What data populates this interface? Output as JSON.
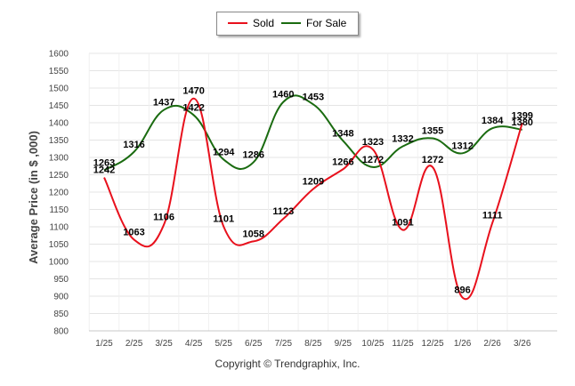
{
  "chart_data": {
    "type": "line",
    "title": "",
    "xlabel": "",
    "ylabel": "Average Price (in $ ,000)",
    "categories": [
      "1/25",
      "2/25",
      "3/25",
      "4/25",
      "5/25",
      "6/25",
      "7/25",
      "8/25",
      "9/25",
      "10/25",
      "11/25",
      "12/25",
      "1/26",
      "2/26",
      "3/26"
    ],
    "ylim": [
      800,
      1600
    ],
    "yticks": [
      800,
      850,
      900,
      950,
      1000,
      1050,
      1100,
      1150,
      1200,
      1250,
      1300,
      1350,
      1400,
      1450,
      1500,
      1550,
      1600
    ],
    "grid": true,
    "legend_position": "top-center",
    "series": [
      {
        "name": "Sold",
        "color": "#e8101c",
        "values": [
          1242,
          1063,
          1106,
          1470,
          1101,
          1058,
          1123,
          1209,
          1266,
          1323,
          1091,
          1272,
          896,
          1111,
          1399
        ]
      },
      {
        "name": "For Sale",
        "color": "#1a6b10",
        "values": [
          1263,
          1316,
          1437,
          1422,
          1294,
          1286,
          1460,
          1453,
          1348,
          1272,
          1332,
          1355,
          1312,
          1384,
          1380
        ]
      }
    ]
  },
  "footer": "Copyright © Trendgraphix, Inc."
}
